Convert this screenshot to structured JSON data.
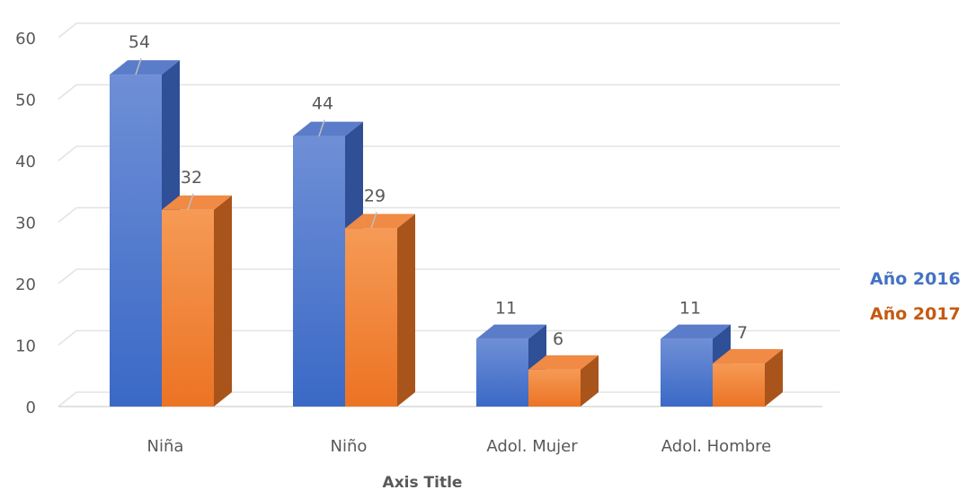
{
  "chart_data": {
    "type": "bar",
    "subtype": "3d-clustered-column",
    "categories": [
      "Niña",
      "Niño",
      "Adol. Mujer",
      "Adol. Hombre"
    ],
    "series": [
      {
        "name": "Año 2016",
        "values": [
          54,
          44,
          11,
          11
        ],
        "color": "#4472C4"
      },
      {
        "name": "Año 2017",
        "values": [
          32,
          29,
          6,
          7
        ],
        "color": "#ED7D31"
      }
    ],
    "xlabel": "Axis Title",
    "ylabel": "",
    "ylim": [
      0,
      60
    ],
    "yticks": [
      0,
      10,
      20,
      30,
      40,
      50,
      60
    ],
    "grid": true,
    "legend": "right",
    "data_labels": true
  },
  "legend": {
    "items": [
      "Año 2016",
      "Año 2017"
    ]
  }
}
